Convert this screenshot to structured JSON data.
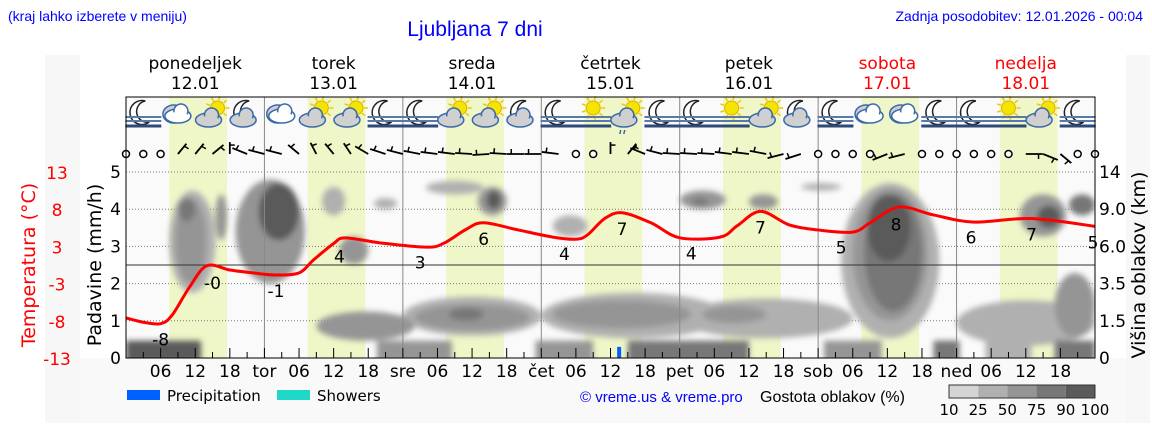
{
  "header": {
    "menu_hint": "(kraj lahko izberete v meniju)",
    "title": "Ljubljana 7 dni",
    "updated": "Zadnja posodobitev: 12.01.2026 - 00:04"
  },
  "days": [
    {
      "name": "ponedeljek",
      "date": "12.01",
      "weekend": false
    },
    {
      "name": "torek",
      "date": "13.01",
      "weekend": false
    },
    {
      "name": "sreda",
      "date": "14.01",
      "weekend": false
    },
    {
      "name": "četrtek",
      "date": "15.01",
      "weekend": false
    },
    {
      "name": "petek",
      "date": "16.01",
      "weekend": false
    },
    {
      "name": "sobota",
      "date": "17.01",
      "weekend": true
    },
    {
      "name": "nedelja",
      "date": "18.01",
      "weekend": true
    }
  ],
  "chart_data": {
    "type": "meteogram",
    "axes": {
      "precipitation": {
        "label": "Padavine (mm/h)",
        "range": [
          0,
          5
        ],
        "ticks": [
          "0",
          "1",
          "2",
          "3",
          "4",
          "5"
        ]
      },
      "temperature": {
        "label": "Temperatura (°C)",
        "range": [
          -13,
          13
        ],
        "ticks": [
          "13",
          "8",
          "3",
          "-3",
          "-8",
          "-13"
        ]
      },
      "cloud_height": {
        "label": "Višina oblakov (km)",
        "ticks": [
          "0",
          "1.5",
          "3.5",
          "6.0",
          "9.0",
          "14"
        ]
      }
    },
    "x_tick_labels": [
      "",
      "06",
      "12",
      "18",
      "tor",
      "06",
      "12",
      "18",
      "sre",
      "06",
      "12",
      "18",
      "čet",
      "06",
      "12",
      "18",
      "pet",
      "06",
      "12",
      "18",
      "sob",
      "06",
      "12",
      "18",
      "ned",
      "06",
      "12",
      "18"
    ],
    "grid": true,
    "daylight": [
      "07:30",
      "17:30"
    ],
    "temperature": {
      "series": [
        [
          "12.01 00:00",
          -7.4
        ],
        [
          "12.01 03:00",
          -8.0
        ],
        [
          "12.01 06:00",
          -8.2
        ],
        [
          "12.01 08:00",
          -7.0
        ],
        [
          "12.01 11:00",
          -3.1
        ],
        [
          "12.01 14:00",
          -0.1
        ],
        [
          "12.01 18:00",
          -0.7
        ],
        [
          "12.01 22:00",
          -1.1
        ],
        [
          "13.01 02:00",
          -1.4
        ],
        [
          "13.01 06:00",
          -1.1
        ],
        [
          "13.01 08:30",
          0.7
        ],
        [
          "13.01 12:00",
          3.0
        ],
        [
          "13.01 14:00",
          3.8
        ],
        [
          "13.01 20:00",
          3.1
        ],
        [
          "14.01 04:00",
          2.5
        ],
        [
          "14.01 07:00",
          3.0
        ],
        [
          "14.01 11:00",
          5.0
        ],
        [
          "14.01 14:00",
          5.9
        ],
        [
          "14.01 20:00",
          4.9
        ],
        [
          "15.01 02:00",
          3.9
        ],
        [
          "15.01 06:00",
          3.6
        ],
        [
          "15.01 08:00",
          4.2
        ],
        [
          "15.01 11:00",
          6.5
        ],
        [
          "15.01 14:00",
          7.3
        ],
        [
          "15.01 19:00",
          5.9
        ],
        [
          "16.01 00:00",
          3.8
        ],
        [
          "16.01 07:00",
          3.9
        ],
        [
          "16.01 10:00",
          5.5
        ],
        [
          "16.01 14:00",
          7.5
        ],
        [
          "16.01 19:00",
          5.6
        ],
        [
          "17.01 00:00",
          4.9
        ],
        [
          "17.01 06:00",
          4.6
        ],
        [
          "17.01 09:00",
          5.9
        ],
        [
          "17.01 14:00",
          8.1
        ],
        [
          "17.01 20:00",
          7.0
        ],
        [
          "18.01 03:00",
          6.0
        ],
        [
          "18.01 13:00",
          6.5
        ],
        [
          "18.01 24:00",
          5.4
        ]
      ],
      "labels": [
        [
          "12.01 06:00",
          "-8"
        ],
        [
          "12.01 15:00",
          "-0"
        ],
        [
          "13.01 02:00",
          "-1"
        ],
        [
          "13.01 13:00",
          "4"
        ],
        [
          "14.01 03:00",
          "3"
        ],
        [
          "14.01 14:00",
          "6"
        ],
        [
          "15.01 04:00",
          "4"
        ],
        [
          "15.01 14:00",
          "7"
        ],
        [
          "16.01 02:00",
          "4"
        ],
        [
          "16.01 14:00",
          "7"
        ],
        [
          "17.01 04:00",
          "5"
        ],
        [
          "17.01 13:30",
          "8"
        ],
        [
          "18.01 02:30",
          "6"
        ],
        [
          "18.01 13:00",
          "7"
        ],
        [
          "18.01 24:00",
          "5"
        ]
      ]
    },
    "precipitation": [
      {
        "time": "15.01 13:30",
        "mm_per_h": 0.3,
        "kind": "Precipitation"
      }
    ],
    "cloud_cover": [
      {
        "from": "12.01 07:30",
        "to": "12.01 15:30",
        "km": [
          3.0,
          11.5
        ],
        "density": 25
      },
      {
        "from": "12.01 08:30",
        "to": "12.01 14:00",
        "km": [
          3.5,
          10.5
        ],
        "density": 50
      },
      {
        "from": "12.01 09:00",
        "to": "12.01 12:00",
        "km": [
          8.0,
          10.5
        ],
        "density": 75
      },
      {
        "from": "12.01 15:30",
        "to": "12.01 17:30",
        "km": [
          6.5,
          11.0
        ],
        "density": 50
      },
      {
        "from": "12.01 19:00",
        "to": "13.01 07:00",
        "km": [
          3.5,
          13.0
        ],
        "density": 50
      },
      {
        "from": "12.01 23:00",
        "to": "13.01 06:00",
        "km": [
          6.5,
          12.5
        ],
        "density": 90
      },
      {
        "from": "13.01 10:00",
        "to": "13.01 14:00",
        "km": [
          8.5,
          12.0
        ],
        "density": 25
      },
      {
        "from": "13.01 13:00",
        "to": "13.01 18:00",
        "km": [
          4.8,
          6.8
        ],
        "density": 50
      },
      {
        "from": "13.01 19:00",
        "to": "13.01 23:00",
        "km": [
          9.0,
          10.5
        ],
        "density": 25
      },
      {
        "from": "14.01 04:00",
        "to": "14.01 14:00",
        "km": [
          11.0,
          12.8
        ],
        "density": 25
      },
      {
        "from": "14.01 13:00",
        "to": "14.01 18:00",
        "km": [
          8.5,
          12.0
        ],
        "density": 50
      },
      {
        "from": "14.01 14:30",
        "to": "14.01 17:00",
        "km": [
          9.0,
          11.5
        ],
        "density": 90
      },
      {
        "from": "15.01 02:00",
        "to": "15.01 08:00",
        "km": [
          6.8,
          8.5
        ],
        "density": 25
      },
      {
        "from": "13.01 09:00",
        "to": "14.01 02:00",
        "km": [
          0.7,
          2.0
        ],
        "density": 50
      },
      {
        "from": "14.01 00:00",
        "to": "15.01 00:00",
        "km": [
          0.9,
          2.8
        ],
        "density": 25
      },
      {
        "from": "14.01 02:00",
        "to": "14.01 22:00",
        "km": [
          1.1,
          2.4
        ],
        "density": 50
      },
      {
        "from": "14.01 08:00",
        "to": "14.01 14:00",
        "km": [
          1.5,
          2.2
        ],
        "density": 75
      },
      {
        "from": "15.01 00:00",
        "to": "16.01 08:00",
        "km": [
          0.8,
          3.0
        ],
        "density": 25
      },
      {
        "from": "15.01 02:00",
        "to": "16.01 02:00",
        "km": [
          1.2,
          2.6
        ],
        "density": 50
      },
      {
        "from": "16.01 00:00",
        "to": "16.01 08:00",
        "km": [
          9.0,
          11.5
        ],
        "density": 50
      },
      {
        "from": "16.01 02:00",
        "to": "16.01 05:00",
        "km": [
          9.5,
          10.5
        ],
        "density": 75
      },
      {
        "from": "16.01 12:00",
        "to": "16.01 17:00",
        "km": [
          9.0,
          11.0
        ],
        "density": 50
      },
      {
        "from": "16.01 21:00",
        "to": "17.01 04:00",
        "km": [
          11.5,
          12.5
        ],
        "density": 25
      },
      {
        "from": "16.01 00:00",
        "to": "17.01 06:00",
        "km": [
          0.8,
          2.7
        ],
        "density": 25
      },
      {
        "from": "16.01 04:00",
        "to": "16.01 15:00",
        "km": [
          1.4,
          2.3
        ],
        "density": 50
      },
      {
        "from": "17.01 04:00",
        "to": "17.01 21:00",
        "km": [
          0.8,
          12.5
        ],
        "density": 25
      },
      {
        "from": "17.01 06:00",
        "to": "17.01 19:00",
        "km": [
          1.5,
          11.8
        ],
        "density": 50
      },
      {
        "from": "17.01 08:00",
        "to": "17.01 18:00",
        "km": [
          2.0,
          11.0
        ],
        "density": 75
      },
      {
        "from": "17.01 08:30",
        "to": "17.01 16:00",
        "km": [
          5.0,
          11.0
        ],
        "density": 90
      },
      {
        "from": "18.01 00:00",
        "to": "18.01 24:00",
        "km": [
          0.5,
          2.6
        ],
        "density": 25
      },
      {
        "from": "18.01 17:00",
        "to": "18.01 24:00",
        "km": [
          0.8,
          4.2
        ],
        "density": 50
      },
      {
        "from": "18.01 11:00",
        "to": "18.01 19:00",
        "km": [
          6.8,
          11.0
        ],
        "density": 50
      },
      {
        "from": "18.01 14:00",
        "to": "18.01 18:00",
        "km": [
          7.5,
          9.5
        ],
        "density": 90
      },
      {
        "from": "18.01 19:30",
        "to": "18.01 24:00",
        "km": [
          8.5,
          11.0
        ],
        "density": 75
      },
      {
        "from": "12.01 00:00",
        "to": "12.01 13:00",
        "km": [
          0,
          0.7
        ],
        "density": 90
      },
      {
        "from": "13.01 19:30",
        "to": "14.01 08:30",
        "km": [
          0,
          0.7
        ],
        "density": 50
      },
      {
        "from": "14.01 23:00",
        "to": "15.01 09:00",
        "km": [
          0,
          0.7
        ],
        "density": 50
      },
      {
        "from": "15.01 15:00",
        "to": "16.01 12:00",
        "km": [
          0,
          0.7
        ],
        "density": 75
      },
      {
        "from": "17.01 01:00",
        "to": "17.01 11:00",
        "km": [
          0,
          0.7
        ],
        "density": 50
      },
      {
        "from": "17.01 20:00",
        "to": "18.01 00:30",
        "km": [
          0,
          0.7
        ],
        "density": 75
      },
      {
        "from": "18.01 05:00",
        "to": "18.01 13:00",
        "km": [
          0,
          0.7
        ],
        "density": 25
      },
      {
        "from": "18.01 17:00",
        "to": "18.01 24:00",
        "km": [
          0,
          0.7
        ],
        "density": 75
      }
    ],
    "weather_icons": [
      "moon-fog",
      "cloud",
      "sun-cloud",
      "moon-cloud",
      "cloud",
      "sun-cloud",
      "sun-cloud",
      "moon-fog",
      "moon-fog",
      "sun-cloud",
      "sun-cloud",
      "moon-cloud",
      "moon-fog",
      "sun-fog",
      "sun-cloud-rain",
      "moon-fog",
      "moon-fog",
      "sun-fog",
      "sun-cloud",
      "moon-cloud",
      "moon-fog",
      "cloud",
      "cloud",
      "moon-fog",
      "moon-fog",
      "sun-fog",
      "sun-cloud",
      "moon-fog"
    ],
    "wind_direction_every_3h": [
      "calm",
      "calm",
      "calm",
      30,
      30,
      40,
      0,
      300,
      290,
      290,
      320,
      340,
      330,
      335,
      310,
      295,
      290,
      285,
      280,
      280,
      275,
      265,
      275,
      270,
      270,
      280,
      "calm",
      "calm",
      0,
      30,
      300,
      290,
      275,
      275,
      275,
      280,
      280,
      285,
      250,
      245,
      "calm",
      "calm",
      "calm",
      "calm",
      240,
      250,
      "calm",
      "calm",
      "calm",
      "calm",
      "calm",
      "calm",
      90,
      120,
      140,
      "calm",
      "calm"
    ]
  },
  "legend": {
    "precipitation": "Precipitation",
    "showers": "Showers",
    "credit": "© vreme.us & vreme.pro",
    "cloud_density_title": "Gostota oblakov (%)",
    "cloud_density_levels": [
      "10",
      "25",
      "50",
      "75",
      "90",
      "100"
    ]
  },
  "colors": {
    "temperature": "#ff0000",
    "precipitation": "#0060ff",
    "showers": "#20d8c8",
    "daylight": "#eff6c8",
    "header_text": "#0000ff",
    "weekend": "#ff0000",
    "density": {
      "10": "#d4d4d4",
      "25": "#b0b0b0",
      "50": "#959595",
      "75": "#777777",
      "90": "#5a5a5a"
    }
  }
}
